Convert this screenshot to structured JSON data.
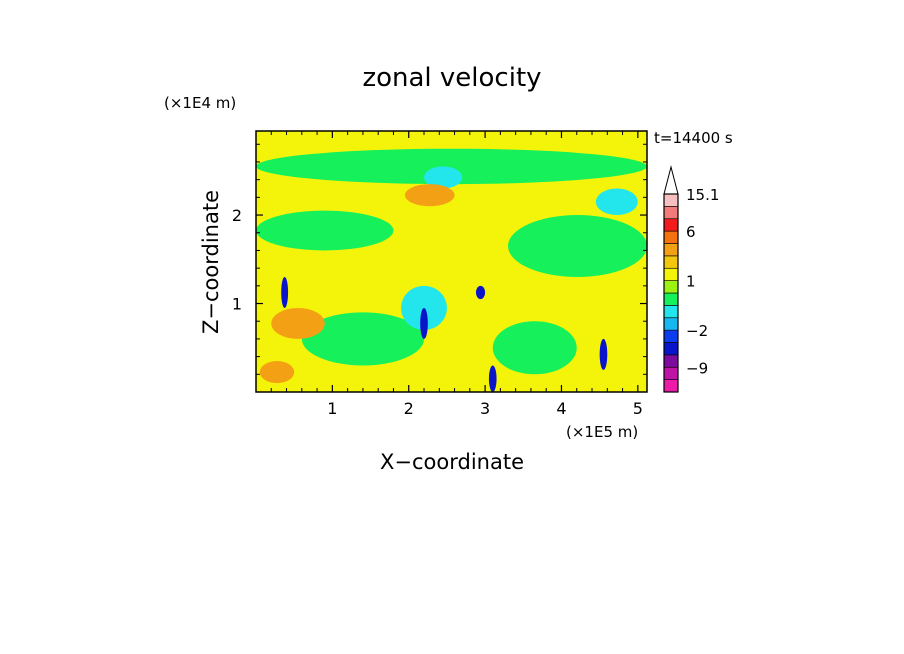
{
  "chart_data": {
    "type": "heatmap",
    "title": "zonal velocity",
    "xlabel": "X−coordinate",
    "ylabel": "Z−coordinate",
    "x_scale_label": "(×1E5 m)",
    "y_scale_label": "(×1E4 m)",
    "time_label": "t=14400 s",
    "xlim": [
      0,
      5.12
    ],
    "ylim": [
      0,
      2.95
    ],
    "x_ticks": [
      1,
      2,
      3,
      4,
      5
    ],
    "y_ticks": [
      1,
      2
    ],
    "x_tick_labels": [
      "1",
      "2",
      "3",
      "4",
      "5"
    ],
    "y_tick_labels": [
      "1",
      "2"
    ],
    "colorbar": {
      "labels": [
        {
          "text": "15.1",
          "value": 15.1
        },
        {
          "text": "6",
          "value": 6
        },
        {
          "text": "1",
          "value": 1
        },
        {
          "text": "−2",
          "value": -2
        },
        {
          "text": "−9",
          "value": -9
        }
      ],
      "levels": [
        {
          "min": -15.1,
          "max": -12,
          "color": "#ee1aa8"
        },
        {
          "min": -12,
          "max": -9,
          "color": "#c012a6"
        },
        {
          "min": -9,
          "max": -6,
          "color": "#7d0c9e"
        },
        {
          "min": -6,
          "max": -4,
          "color": "#0a14c8"
        },
        {
          "min": -4,
          "max": -2,
          "color": "#0a3cf0"
        },
        {
          "min": -2,
          "max": -1,
          "color": "#16b8f2"
        },
        {
          "min": -1,
          "max": 0,
          "color": "#22e6ec"
        },
        {
          "min": 0,
          "max": 0.5,
          "color": "#16f05a"
        },
        {
          "min": 0.5,
          "max": 1,
          "color": "#9cf212"
        },
        {
          "min": 1,
          "max": 1.5,
          "color": "#f4f40a"
        },
        {
          "min": 1.5,
          "max": 2,
          "color": "#f2c80e"
        },
        {
          "min": 2,
          "max": 3,
          "color": "#f4a015"
        },
        {
          "min": 3,
          "max": 6,
          "color": "#f47310"
        },
        {
          "min": 6,
          "max": 9,
          "color": "#f21c1c"
        },
        {
          "min": 9,
          "max": 12,
          "color": "#f27a7a"
        },
        {
          "min": 12,
          "max": 15.1,
          "color": "#f6c0c0"
        }
      ]
    },
    "field_background_color": "#f4f40a",
    "field_features": [
      {
        "value": 0.3,
        "x": [
          0.0,
          5.12
        ],
        "z": [
          2.35,
          2.75
        ],
        "desc": "upper band"
      },
      {
        "value": 0.3,
        "x": [
          0.0,
          1.8
        ],
        "z": [
          1.6,
          2.05
        ]
      },
      {
        "value": 0.3,
        "x": [
          3.3,
          5.12
        ],
        "z": [
          1.3,
          2.0
        ]
      },
      {
        "value": 0.3,
        "x": [
          0.6,
          2.2
        ],
        "z": [
          0.3,
          0.9
        ]
      },
      {
        "value": 0.3,
        "x": [
          3.1,
          4.2
        ],
        "z": [
          0.2,
          0.8
        ]
      },
      {
        "value": -0.5,
        "x": [
          2.2,
          2.7
        ],
        "z": [
          2.3,
          2.55
        ]
      },
      {
        "value": -0.5,
        "x": [
          4.45,
          5.0
        ],
        "z": [
          2.0,
          2.3
        ]
      },
      {
        "value": -0.5,
        "x": [
          1.9,
          2.5
        ],
        "z": [
          0.7,
          1.2
        ]
      },
      {
        "value": 2.5,
        "x": [
          0.2,
          0.9
        ],
        "z": [
          0.6,
          0.95
        ]
      },
      {
        "value": 2.5,
        "x": [
          1.95,
          2.6
        ],
        "z": [
          2.1,
          2.35
        ]
      },
      {
        "value": 2.5,
        "x": [
          0.05,
          0.5
        ],
        "z": [
          0.1,
          0.35
        ]
      },
      {
        "value": -5.0,
        "x": [
          0.33,
          0.42
        ],
        "z": [
          0.95,
          1.3
        ]
      },
      {
        "value": -5.0,
        "x": [
          2.15,
          2.25
        ],
        "z": [
          0.6,
          0.95
        ]
      },
      {
        "value": -5.0,
        "x": [
          2.88,
          3.0
        ],
        "z": [
          1.05,
          1.2
        ]
      },
      {
        "value": -5.0,
        "x": [
          3.05,
          3.15
        ],
        "z": [
          0.0,
          0.3
        ]
      },
      {
        "value": -5.0,
        "x": [
          4.5,
          4.6
        ],
        "z": [
          0.25,
          0.6
        ]
      }
    ]
  }
}
